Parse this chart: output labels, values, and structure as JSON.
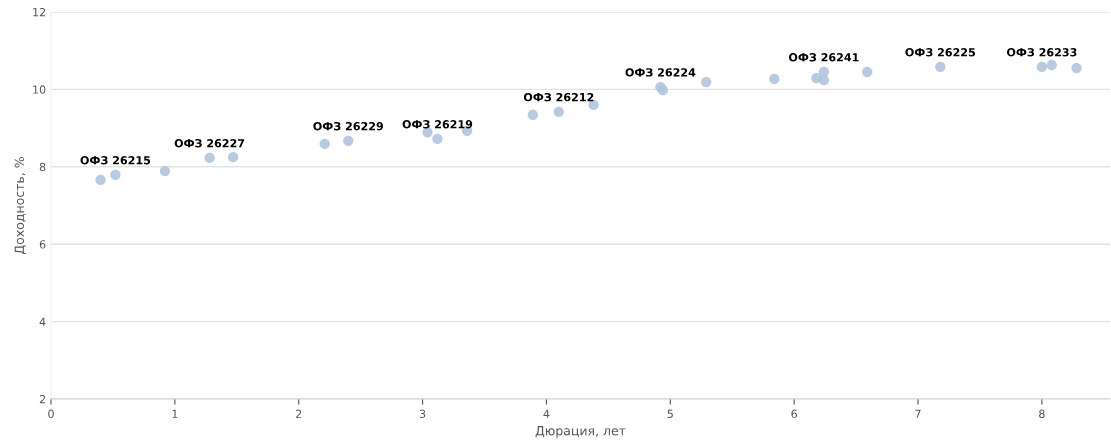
{
  "chart_data": {
    "type": "scatter",
    "xlabel": "Дюрация, лет",
    "ylabel": "Доходность, %",
    "xlim": [
      0,
      8.55
    ],
    "ylim": [
      2,
      12
    ],
    "xticks": [
      0,
      1,
      2,
      3,
      4,
      5,
      6,
      7,
      8
    ],
    "yticks": [
      2,
      4,
      6,
      8,
      10,
      12
    ],
    "grid": "y",
    "marker": "circle",
    "series": [
      {
        "color": "#b0c4de",
        "x": [
          0.4,
          0.52,
          0.92,
          1.28,
          1.47,
          2.21,
          2.4,
          3.04,
          3.12,
          3.36,
          3.89,
          4.1,
          4.38,
          4.92,
          4.94,
          5.29,
          5.84,
          6.18,
          6.24,
          6.24,
          6.59,
          7.18,
          8.0,
          8.08,
          8.28
        ],
        "values": [
          7.66,
          7.79,
          7.89,
          8.23,
          8.25,
          8.59,
          8.67,
          8.89,
          8.72,
          8.93,
          9.34,
          9.42,
          9.6,
          10.06,
          9.98,
          10.19,
          10.27,
          10.29,
          10.45,
          10.24,
          10.45,
          10.58,
          10.58,
          10.63,
          10.55
        ]
      }
    ],
    "annotations": [
      {
        "text": "ОФЗ 26215",
        "x": 0.52,
        "y": 7.79
      },
      {
        "text": "ОФЗ 26227",
        "x": 1.28,
        "y": 8.23
      },
      {
        "text": "ОФЗ 26229",
        "x": 2.4,
        "y": 8.67
      },
      {
        "text": "ОФЗ 26219",
        "x": 3.12,
        "y": 8.72
      },
      {
        "text": "ОФЗ 26212",
        "x": 4.1,
        "y": 9.42
      },
      {
        "text": "ОФЗ 26224",
        "x": 4.92,
        "y": 10.06
      },
      {
        "text": "ОФЗ 26241",
        "x": 6.24,
        "y": 10.45
      },
      {
        "text": "ОФЗ 26225",
        "x": 7.18,
        "y": 10.58
      },
      {
        "text": "ОФЗ 26233",
        "x": 8.0,
        "y": 10.58
      }
    ]
  }
}
